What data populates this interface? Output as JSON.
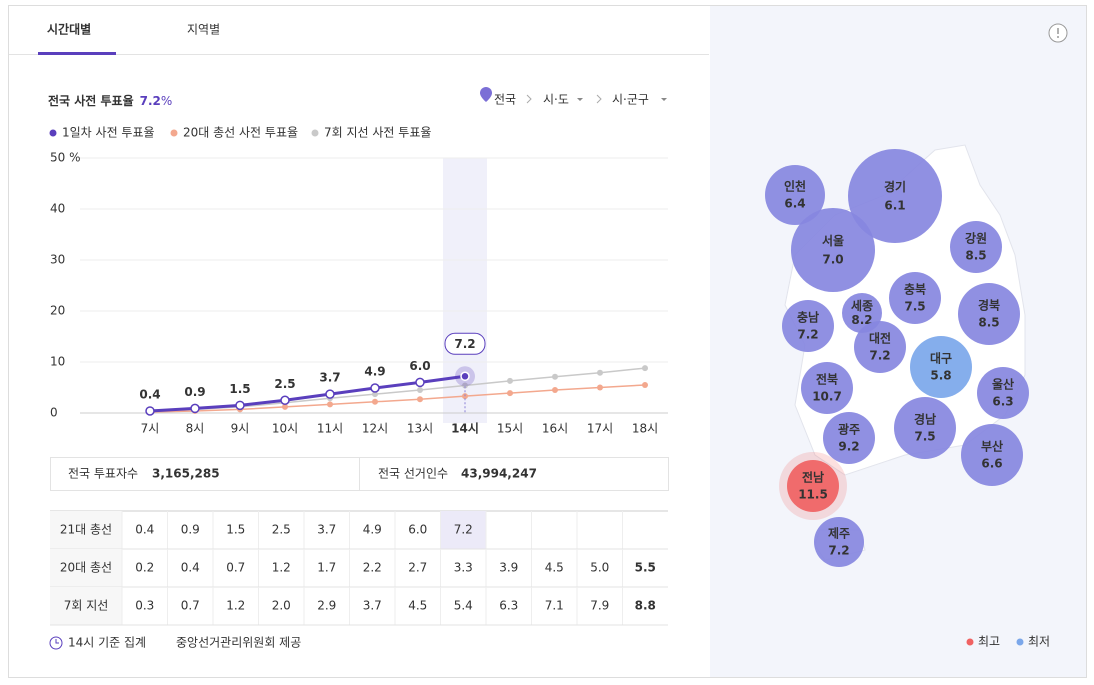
{
  "tabs": [
    "시간대별",
    "지역별"
  ],
  "header": {
    "title": "전국 사전 투표율",
    "rate": "7.2",
    "rate_unit": "%"
  },
  "breadcrumb": [
    "전국",
    "시·도",
    "시·군구"
  ],
  "chart_data": {
    "type": "line",
    "categories": [
      "7시",
      "8시",
      "9시",
      "10시",
      "11시",
      "12시",
      "13시",
      "14시",
      "15시",
      "16시",
      "17시",
      "18시"
    ],
    "highlight": "14시",
    "series": [
      {
        "name": "1일차 사전 투표율",
        "color": "#5a3fbd",
        "values": [
          0.4,
          0.9,
          1.5,
          2.5,
          3.7,
          4.9,
          6.0,
          7.2,
          null,
          null,
          null,
          null
        ],
        "value_labels": [
          "0.4",
          "0.9",
          "1.5",
          "2.5",
          "3.7",
          "4.9",
          "6.0",
          "7.2",
          null,
          null,
          null,
          null
        ]
      },
      {
        "name": "20대 총선 사전 투표율",
        "color": "#f3a88e",
        "values": [
          0.2,
          0.4,
          0.7,
          1.2,
          1.7,
          2.2,
          2.7,
          3.3,
          3.9,
          4.5,
          5.0,
          5.5
        ],
        "value_labels": [
          "0.2",
          "0.4",
          "0.7",
          "1.2",
          "1.7",
          "2.2",
          "2.7",
          "3.3",
          "3.9",
          "4.5",
          "5.0",
          "5.5"
        ]
      },
      {
        "name": "7회 지선 사전 투표율",
        "color": "#c9c9c9",
        "values": [
          0.3,
          0.7,
          1.2,
          2.0,
          2.9,
          3.7,
          4.5,
          5.4,
          6.3,
          7.1,
          7.9,
          8.8
        ],
        "value_labels": [
          "0.3",
          "0.7",
          "1.2",
          "2.0",
          "2.9",
          "3.7",
          "4.5",
          "5.4",
          "6.3",
          "7.1",
          "7.9",
          "8.8"
        ]
      }
    ],
    "ylim": [
      0,
      50
    ],
    "yticks": [
      0,
      10,
      20,
      30,
      40,
      {
        "value": 50,
        "label": "50 %"
      }
    ],
    "grid": true
  },
  "stats": [
    {
      "label": "전국 투표자수",
      "value": "3,165,285"
    },
    {
      "label": "전국 선거인수",
      "value": "43,994,247"
    }
  ],
  "table": {
    "row_labels": [
      "21대 총선",
      "20대 총선",
      "7회 지선"
    ]
  },
  "footer": {
    "note": "14시 기준 집계",
    "source": "중앙선거관리위원회 제공"
  },
  "map": {
    "bubble_color": "#8787df",
    "regions": [
      {
        "name": "인천",
        "label": "6.4"
      },
      {
        "name": "경기",
        "label": "6.1"
      },
      {
        "name": "서울",
        "label": "7.0"
      },
      {
        "name": "강원",
        "label": "8.5"
      },
      {
        "name": "충북",
        "label": "7.5"
      },
      {
        "name": "세종",
        "label": "8.2"
      },
      {
        "name": "경북",
        "label": "8.5"
      },
      {
        "name": "충남",
        "label": "7.2"
      },
      {
        "name": "대전",
        "label": "7.2"
      },
      {
        "name": "대구",
        "label": "5.8",
        "color": "#7ba7ea"
      },
      {
        "name": "울산",
        "label": "6.3"
      },
      {
        "name": "전북",
        "label": "10.7"
      },
      {
        "name": "경남",
        "label": "7.5"
      },
      {
        "name": "광주",
        "label": "9.2"
      },
      {
        "name": "부산",
        "label": "6.6"
      },
      {
        "name": "전남",
        "label": "11.5",
        "color": "#f06262"
      },
      {
        "name": "제주",
        "label": "7.2"
      }
    ],
    "legend": [
      {
        "label": "최고",
        "color": "#f06262"
      },
      {
        "label": "최저",
        "color": "#7ba7ea"
      }
    ]
  }
}
